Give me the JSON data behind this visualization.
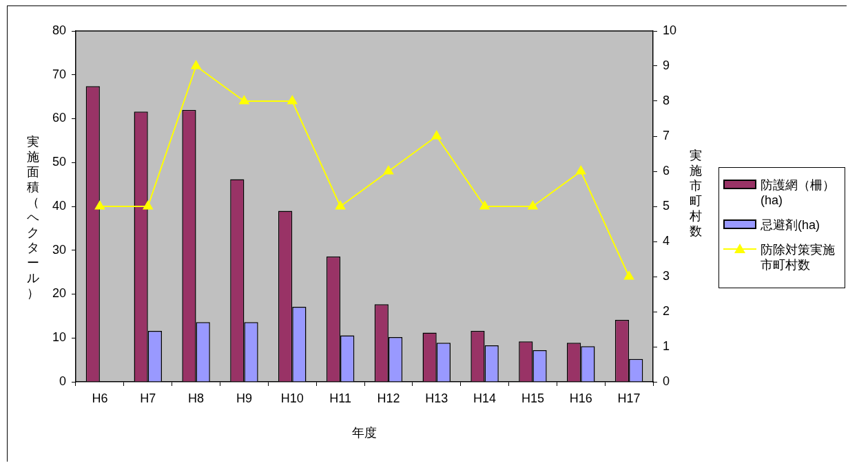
{
  "chart_data": {
    "type": "bar",
    "categories": [
      "H6",
      "H7",
      "H8",
      "H9",
      "H10",
      "H11",
      "H12",
      "H13",
      "H14",
      "H15",
      "H16",
      "H17"
    ],
    "xlabel": "年度",
    "ylabel": "実施面積（ヘクタール）",
    "y2label": "実施市町村数",
    "series": [
      {
        "name": "防護網（柵）(ha)",
        "color": "#993366",
        "values": [
          67.4,
          61.6,
          62.0,
          46.2,
          39.0,
          28.6,
          17.7,
          11.2,
          11.6,
          9.2,
          8.9,
          14.1
        ]
      },
      {
        "name": "忌避剤(ha)",
        "color": "#9999ff",
        "values": [
          null,
          11.6,
          13.6,
          13.6,
          17.1,
          10.6,
          10.2,
          8.9,
          8.3,
          7.2,
          8.1,
          5.2
        ]
      },
      {
        "name": "防除対策実施市町村数",
        "type": "line",
        "axis": "y2",
        "color": "#ffff00",
        "values": [
          5,
          5,
          9,
          8,
          8,
          5,
          6,
          7,
          5,
          5,
          6,
          3
        ]
      }
    ],
    "ylim": [
      0,
      80
    ],
    "yticks": [
      0,
      10,
      20,
      30,
      40,
      50,
      60,
      70,
      80
    ],
    "y2lim": [
      0,
      10
    ],
    "y2ticks": [
      0,
      1,
      2,
      3,
      4,
      5,
      6,
      7,
      8,
      9,
      10
    ],
    "marker": "triangle",
    "legend": "right"
  }
}
